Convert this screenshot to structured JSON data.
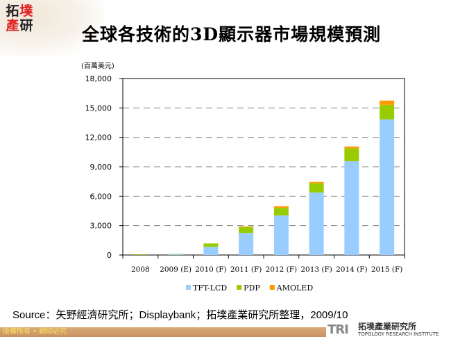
{
  "header": {
    "title": "全球各技術的3D顯示器市場規模預測",
    "logo_text": "拓墣產研"
  },
  "chart_data": {
    "type": "bar",
    "stacked": true,
    "title": "全球各技術的3D顯示器市場規模預測",
    "ylabel": "(百萬美元)",
    "xlabel": "",
    "ylim": [
      0,
      18000
    ],
    "yticks": [
      "0",
      "3,000",
      "6,000",
      "9,000",
      "12,000",
      "15,000",
      "18,000"
    ],
    "ytick_values": [
      0,
      3000,
      6000,
      9000,
      12000,
      15000,
      18000
    ],
    "grid": "horizontal dashed",
    "legend_position": "bottom",
    "categories": [
      "2008",
      "2009 (E)",
      "2010 (F)",
      "2011 (F)",
      "2012 (F)",
      "2013 (F)",
      "2014 (F)",
      "2015 (F)"
    ],
    "series": [
      {
        "name": "TFT-LCD",
        "color": "#99ccff",
        "values": [
          10,
          80,
          830,
          2250,
          4030,
          6370,
          9570,
          13830
        ]
      },
      {
        "name": "PDP",
        "color": "#99cc00",
        "values": [
          60,
          40,
          350,
          590,
          780,
          950,
          1300,
          1490
        ]
      },
      {
        "name": "AMOLED",
        "color": "#ff9900",
        "values": [
          0,
          0,
          0,
          70,
          160,
          140,
          190,
          430
        ]
      }
    ]
  },
  "source": "Source：矢野經濟研究所；Displaybank；拓墣產業研究所整理，2009/10",
  "footer": {
    "copyright": "版權所有 • 翻印必究",
    "org_cn": "拓墣產業研究所",
    "org_en": "TOPOLOGY RESEARCH INSTITUTE",
    "org_abbr": "TRI"
  }
}
